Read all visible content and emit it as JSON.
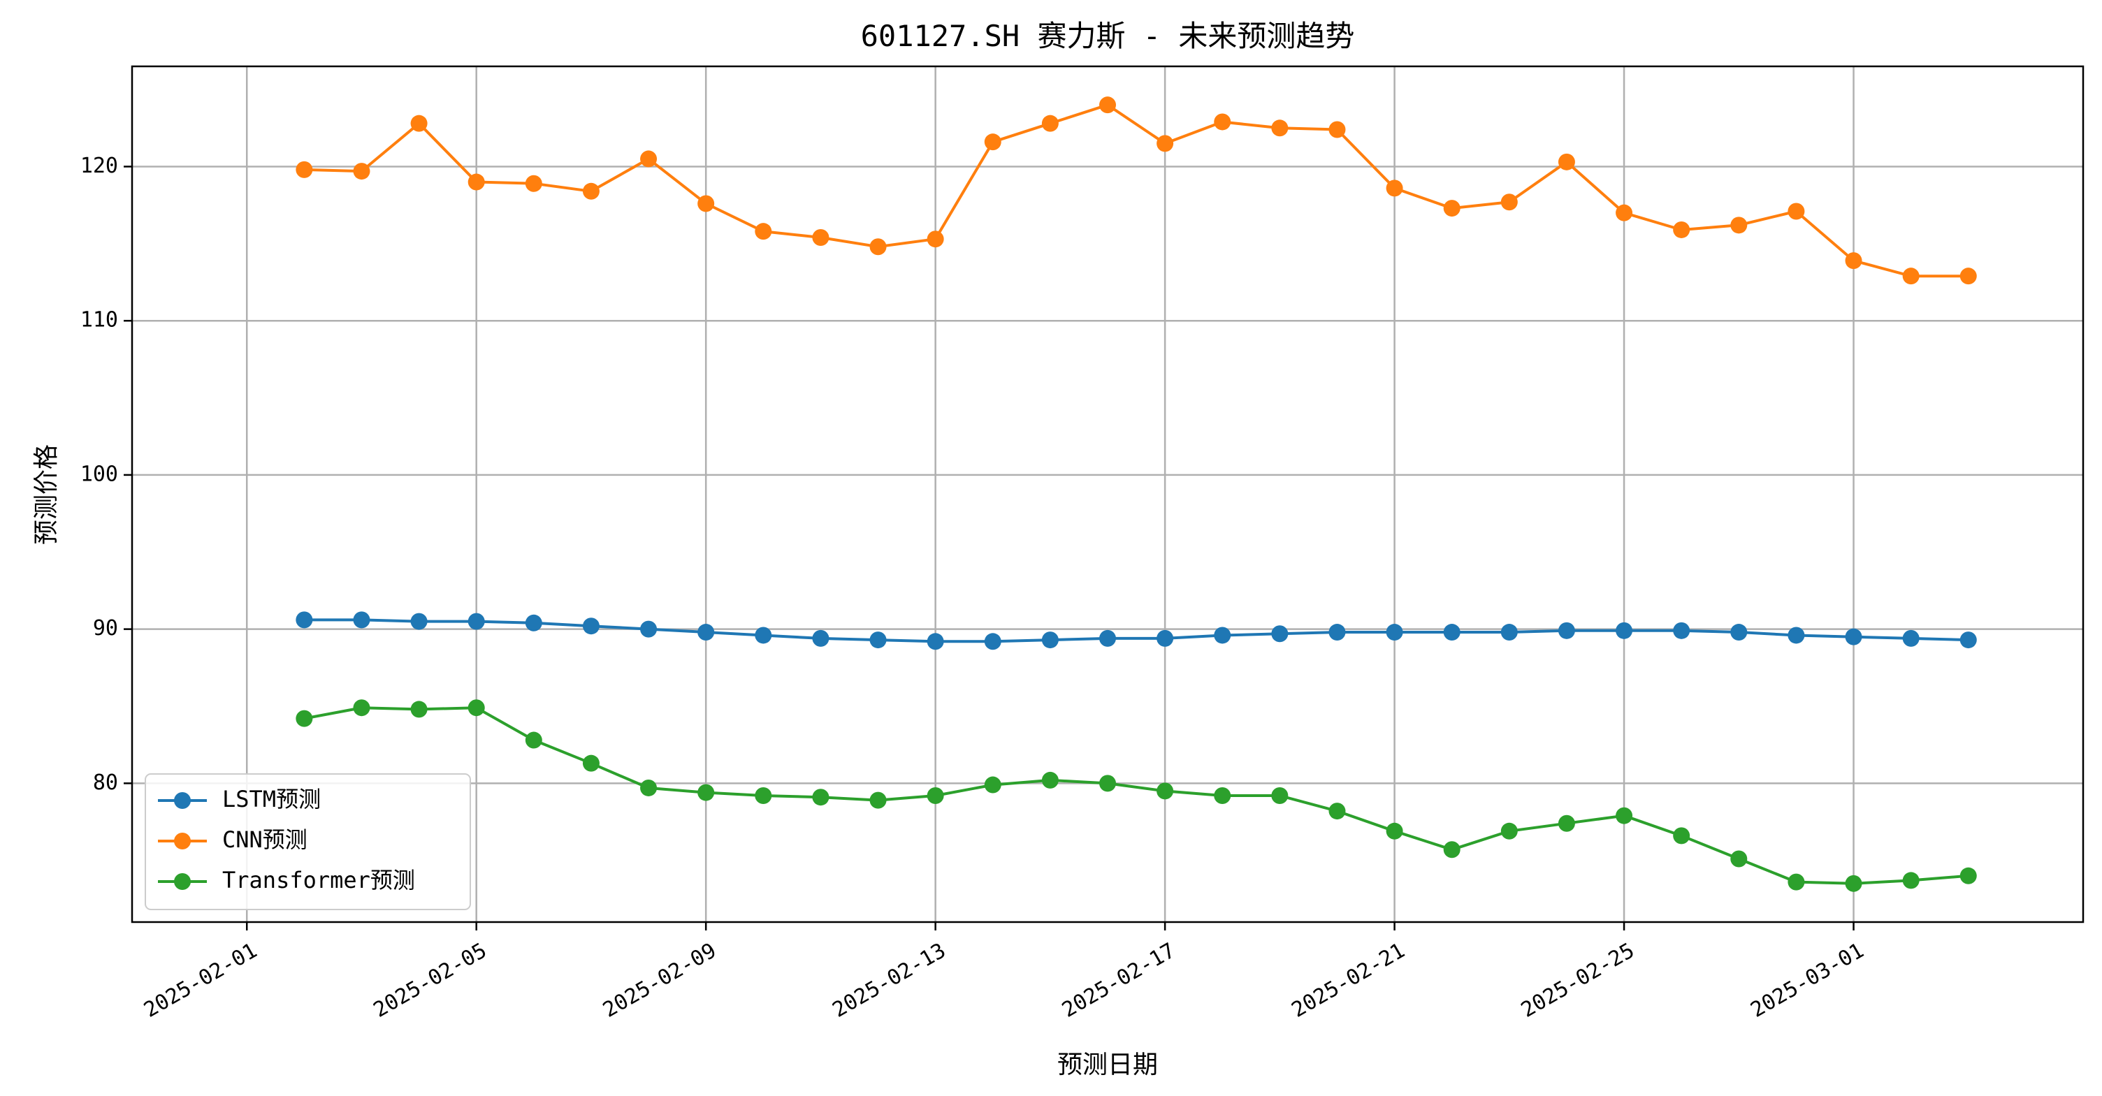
{
  "chart_data": {
    "type": "line",
    "title": "601127.SH 赛力斯 - 未来预测趋势",
    "xlabel": "预测日期",
    "ylabel": "预测价格",
    "x_tick_labels": [
      "2025-02-01",
      "2025-02-05",
      "2025-02-09",
      "2025-02-13",
      "2025-02-17",
      "2025-02-21",
      "2025-02-25",
      "2025-03-01"
    ],
    "y_tick_labels": [
      "80",
      "90",
      "100",
      "110",
      "120"
    ],
    "ylim": [
      71.0,
      126.5
    ],
    "xlim": [
      "2025-01-30",
      "2025-03-05"
    ],
    "grid": true,
    "legend_position": "lower-left",
    "x": [
      "2025-02-02",
      "2025-02-03",
      "2025-02-04",
      "2025-02-05",
      "2025-02-06",
      "2025-02-07",
      "2025-02-08",
      "2025-02-09",
      "2025-02-10",
      "2025-02-11",
      "2025-02-12",
      "2025-02-13",
      "2025-02-14",
      "2025-02-15",
      "2025-02-16",
      "2025-02-17",
      "2025-02-18",
      "2025-02-19",
      "2025-02-20",
      "2025-02-21",
      "2025-02-22",
      "2025-02-23",
      "2025-02-24",
      "2025-02-25",
      "2025-02-26",
      "2025-02-27",
      "2025-02-28",
      "2025-03-01",
      "2025-03-02",
      "2025-03-03"
    ],
    "series": [
      {
        "name": "LSTM预测",
        "color": "#1f77b4",
        "values": [
          90.6,
          90.6,
          90.5,
          90.5,
          90.4,
          90.2,
          90.0,
          89.8,
          89.6,
          89.4,
          89.3,
          89.2,
          89.2,
          89.3,
          89.4,
          89.4,
          89.6,
          89.7,
          89.8,
          89.8,
          89.8,
          89.8,
          89.9,
          89.9,
          89.9,
          89.8,
          89.6,
          89.5,
          89.4,
          89.3
        ]
      },
      {
        "name": "CNN预测",
        "color": "#ff7f0e",
        "values": [
          119.8,
          119.7,
          122.8,
          119.0,
          118.9,
          118.4,
          120.5,
          117.6,
          115.8,
          115.4,
          114.8,
          115.3,
          121.6,
          122.8,
          124.0,
          121.5,
          122.9,
          122.5,
          122.4,
          118.6,
          117.3,
          117.7,
          120.3,
          117.0,
          115.9,
          116.2,
          117.1,
          113.9,
          112.9,
          112.9
        ]
      },
      {
        "name": "Transformer预测",
        "color": "#2ca02c",
        "values": [
          84.2,
          84.9,
          84.8,
          84.9,
          82.8,
          81.3,
          79.7,
          79.4,
          79.2,
          79.1,
          78.9,
          79.2,
          79.9,
          80.2,
          80.0,
          79.5,
          79.2,
          79.2,
          78.2,
          76.9,
          75.7,
          76.9,
          77.4,
          77.9,
          76.6,
          75.1,
          73.6,
          73.5,
          73.7,
          74.0
        ]
      }
    ]
  }
}
